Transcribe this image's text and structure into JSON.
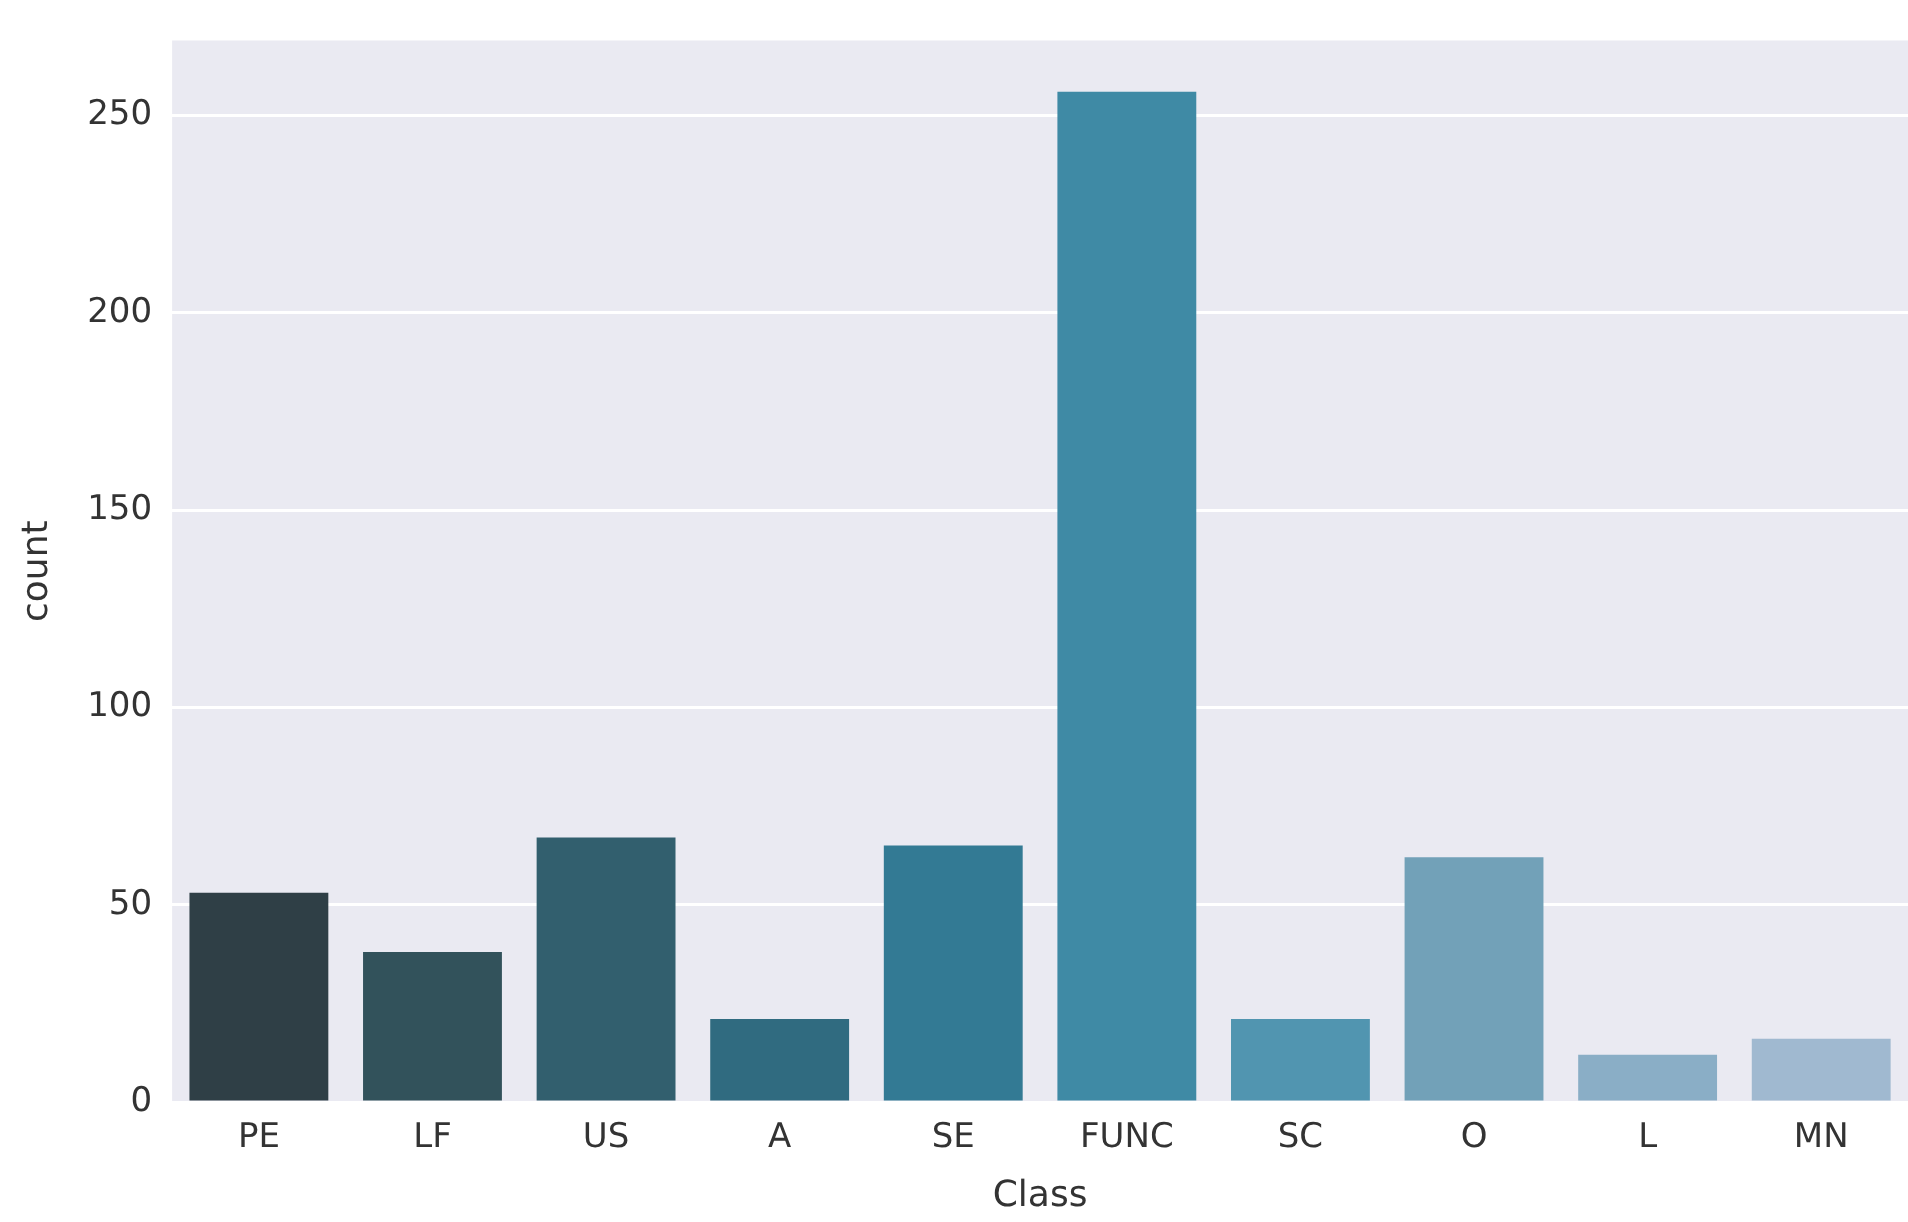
{
  "chart_data": {
    "type": "bar",
    "xlabel": "Class",
    "ylabel": "count",
    "categories": [
      "PE",
      "LF",
      "US",
      "A",
      "SE",
      "FUNC",
      "SC",
      "O",
      "L",
      "MN"
    ],
    "values": [
      53,
      38,
      67,
      21,
      65,
      256,
      21,
      62,
      12,
      16
    ],
    "colors": [
      "#2f3f46",
      "#32525b",
      "#325f6e",
      "#306b80",
      "#337a94",
      "#3f8aa5",
      "#5195b0",
      "#72a1b8",
      "#8aaec6",
      "#a0b9d0"
    ],
    "ylim": [
      0,
      269
    ],
    "yticks": [
      0,
      50,
      100,
      150,
      200,
      250
    ],
    "grid": "y",
    "legend": false
  }
}
